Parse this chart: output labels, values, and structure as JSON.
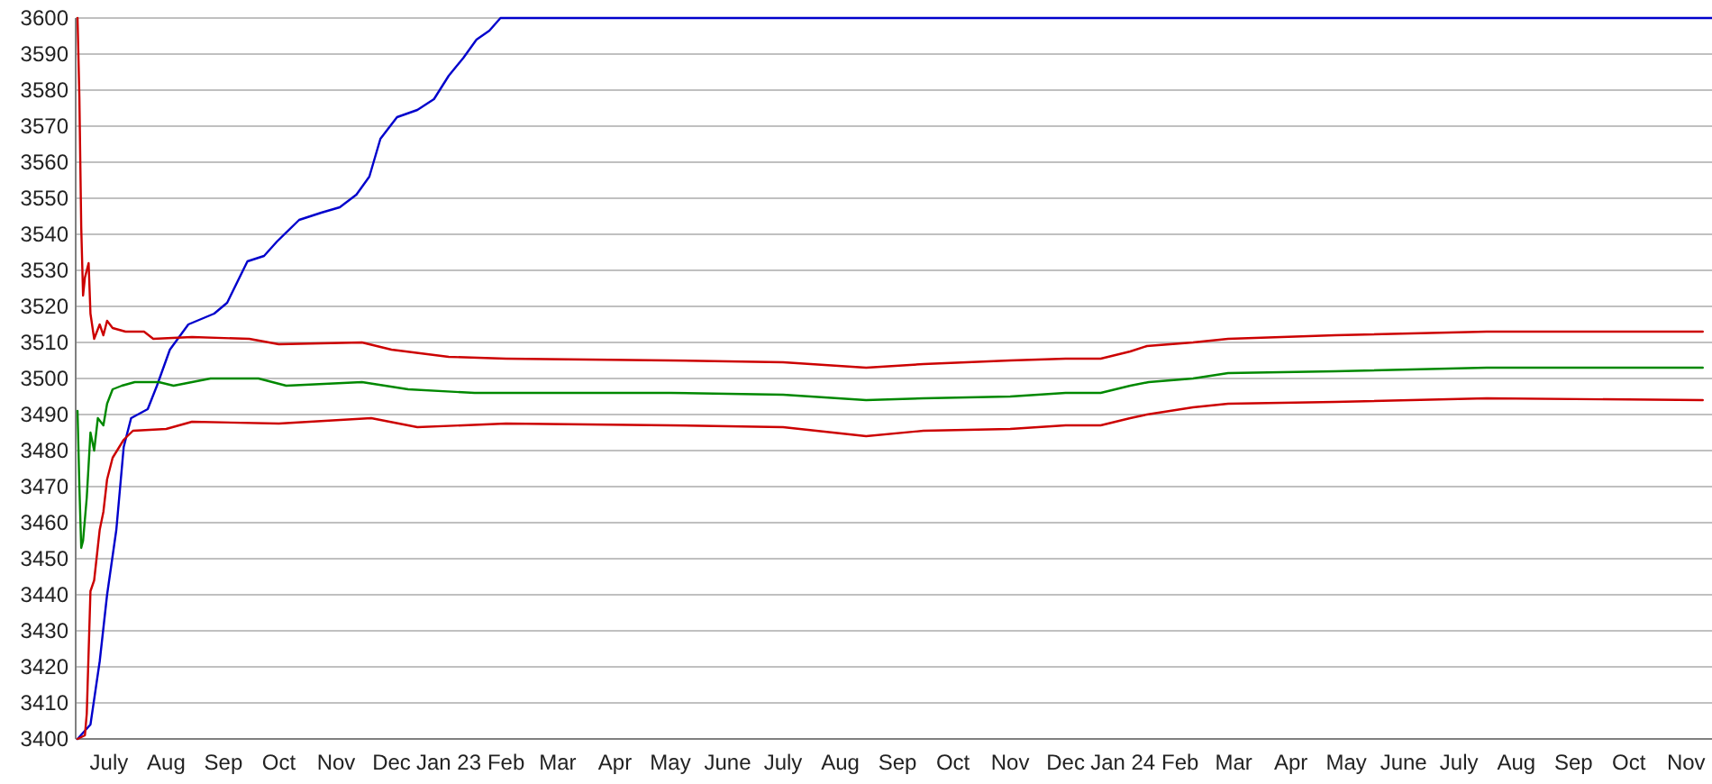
{
  "chart_data": {
    "type": "line",
    "xlim": [
      "2022-06-13",
      "2024-11-15"
    ],
    "ylim": [
      3400,
      3600
    ],
    "xticks": [
      {
        "value": "2022-07-01",
        "label": "July"
      },
      {
        "value": "2022-08-01",
        "label": "Aug"
      },
      {
        "value": "2022-09-01",
        "label": "Sep"
      },
      {
        "value": "2022-10-01",
        "label": "Oct"
      },
      {
        "value": "2022-11-01",
        "label": "Nov"
      },
      {
        "value": "2022-12-01",
        "label": "Dec"
      },
      {
        "value": "2023-01-01",
        "label": "Jan 23"
      },
      {
        "value": "2023-02-01",
        "label": "Feb"
      },
      {
        "value": "2023-03-01",
        "label": "Mar"
      },
      {
        "value": "2023-04-01",
        "label": "Apr"
      },
      {
        "value": "2023-05-01",
        "label": "May"
      },
      {
        "value": "2023-06-01",
        "label": "June"
      },
      {
        "value": "2023-07-01",
        "label": "July"
      },
      {
        "value": "2023-08-01",
        "label": "Aug"
      },
      {
        "value": "2023-09-01",
        "label": "Sep"
      },
      {
        "value": "2023-10-01",
        "label": "Oct"
      },
      {
        "value": "2023-11-01",
        "label": "Nov"
      },
      {
        "value": "2023-12-01",
        "label": "Dec"
      },
      {
        "value": "2024-01-01",
        "label": "Jan 24"
      },
      {
        "value": "2024-02-01",
        "label": "Feb"
      },
      {
        "value": "2024-03-01",
        "label": "Mar"
      },
      {
        "value": "2024-04-01",
        "label": "Apr"
      },
      {
        "value": "2024-05-01",
        "label": "May"
      },
      {
        "value": "2024-06-01",
        "label": "June"
      },
      {
        "value": "2024-07-01",
        "label": "July"
      },
      {
        "value": "2024-08-01",
        "label": "Aug"
      },
      {
        "value": "2024-09-01",
        "label": "Sep"
      },
      {
        "value": "2024-10-01",
        "label": "Oct"
      },
      {
        "value": "2024-11-01",
        "label": "Nov"
      }
    ],
    "yticks": [
      3400,
      3410,
      3420,
      3430,
      3440,
      3450,
      3460,
      3470,
      3480,
      3490,
      3500,
      3510,
      3520,
      3530,
      3540,
      3550,
      3560,
      3570,
      3580,
      3590,
      3600
    ],
    "grid": "y",
    "line_style": "solid",
    "series": [
      {
        "color": "#0000cc",
        "x": [
          "2022-06-14",
          "2022-06-21",
          "2022-06-26",
          "2022-06-30",
          "2022-07-05",
          "2022-07-09",
          "2022-07-13",
          "2022-07-22",
          "2022-07-27",
          "2022-08-03",
          "2022-08-13",
          "2022-08-27",
          "2022-09-03",
          "2022-09-14",
          "2022-09-23",
          "2022-09-30",
          "2022-10-12",
          "2022-10-24",
          "2022-11-03",
          "2022-11-12",
          "2022-11-19",
          "2022-11-25",
          "2022-12-04",
          "2022-12-15",
          "2022-12-24",
          "2023-01-01",
          "2023-01-09",
          "2023-01-16",
          "2023-01-23",
          "2023-01-29",
          "2024-11-15"
        ],
        "values": [
          3400,
          3404,
          3421.5,
          3440,
          3458,
          3481,
          3489,
          3491.5,
          3498,
          3508,
          3515,
          3518,
          3521,
          3532.5,
          3534,
          3538,
          3544,
          3546,
          3547.5,
          3551,
          3556,
          3566.5,
          3572.5,
          3574.5,
          3577.5,
          3584,
          3589,
          3594,
          3596.5,
          3600,
          3600
        ]
      },
      {
        "color": "#cc0000",
        "x": [
          "2022-06-14",
          "2022-06-15",
          "2022-06-16",
          "2022-06-17",
          "2022-06-18",
          "2022-06-20",
          "2022-06-21",
          "2022-06-23",
          "2022-06-26",
          "2022-06-28",
          "2022-06-30",
          "2022-07-03",
          "2022-07-10",
          "2022-07-20",
          "2022-07-25",
          "2022-08-15",
          "2022-09-15",
          "2022-10-01",
          "2022-11-15",
          "2022-12-01",
          "2023-01-01",
          "2023-02-01",
          "2023-05-01",
          "2023-07-01",
          "2023-08-15",
          "2023-09-15",
          "2023-11-01",
          "2023-12-01",
          "2023-12-20",
          "2024-01-05",
          "2024-01-14",
          "2024-02-08",
          "2024-02-27",
          "2024-04-25",
          "2024-07-16",
          "2024-11-10"
        ],
        "values": [
          3600,
          3578,
          3542,
          3523,
          3528,
          3532,
          3518,
          3511,
          3515,
          3512,
          3516,
          3514,
          3513,
          3513,
          3511,
          3511.5,
          3511,
          3509.5,
          3510,
          3508,
          3506,
          3505.5,
          3505,
          3504.5,
          3503,
          3504,
          3505,
          3505.5,
          3505.5,
          3507.5,
          3509,
          3510,
          3511,
          3512,
          3513,
          3513
        ]
      },
      {
        "color": "#008800",
        "x": [
          "2022-06-14",
          "2022-06-15",
          "2022-06-16",
          "2022-06-17",
          "2022-06-19",
          "2022-06-21",
          "2022-06-23",
          "2022-06-25",
          "2022-06-28",
          "2022-06-30",
          "2022-07-03",
          "2022-07-08",
          "2022-07-15",
          "2022-07-28",
          "2022-08-05",
          "2022-08-25",
          "2022-09-20",
          "2022-10-05",
          "2022-11-15",
          "2022-12-10",
          "2023-01-15",
          "2023-03-01",
          "2023-05-01",
          "2023-07-01",
          "2023-08-15",
          "2023-09-15",
          "2023-11-01",
          "2023-12-01",
          "2023-12-20",
          "2024-01-05",
          "2024-01-15",
          "2024-02-08",
          "2024-02-27",
          "2024-04-25",
          "2024-07-16",
          "2024-11-10"
        ],
        "values": [
          3491,
          3470,
          3453,
          3455,
          3467,
          3485,
          3480,
          3489,
          3487,
          3493,
          3497,
          3498,
          3499,
          3499,
          3498,
          3500,
          3500,
          3498,
          3499,
          3497,
          3496,
          3496,
          3496,
          3495.5,
          3494,
          3494.5,
          3495,
          3496,
          3496,
          3498,
          3499,
          3500,
          3501.5,
          3502,
          3503,
          3503
        ]
      },
      {
        "color": "#cc0000",
        "x": [
          "2022-06-14",
          "2022-06-18",
          "2022-06-19",
          "2022-06-20",
          "2022-06-21",
          "2022-06-23",
          "2022-06-26",
          "2022-06-28",
          "2022-06-30",
          "2022-07-03",
          "2022-07-09",
          "2022-07-14",
          "2022-08-01",
          "2022-08-15",
          "2022-10-01",
          "2022-11-20",
          "2022-12-15",
          "2023-02-01",
          "2023-05-01",
          "2023-07-01",
          "2023-08-15",
          "2023-09-15",
          "2023-11-01",
          "2023-12-01",
          "2023-12-20",
          "2024-01-05",
          "2024-01-14",
          "2024-02-08",
          "2024-02-27",
          "2024-04-25",
          "2024-07-16",
          "2024-11-10"
        ],
        "values": [
          3400,
          3401,
          3407,
          3424,
          3441,
          3444,
          3458,
          3463,
          3472,
          3478,
          3483,
          3485.5,
          3486,
          3488,
          3487.5,
          3489,
          3486.5,
          3487.5,
          3487,
          3486.5,
          3484,
          3485.5,
          3486,
          3487,
          3487,
          3489,
          3490,
          3492,
          3493,
          3493.5,
          3494.5,
          3494
        ]
      }
    ]
  }
}
